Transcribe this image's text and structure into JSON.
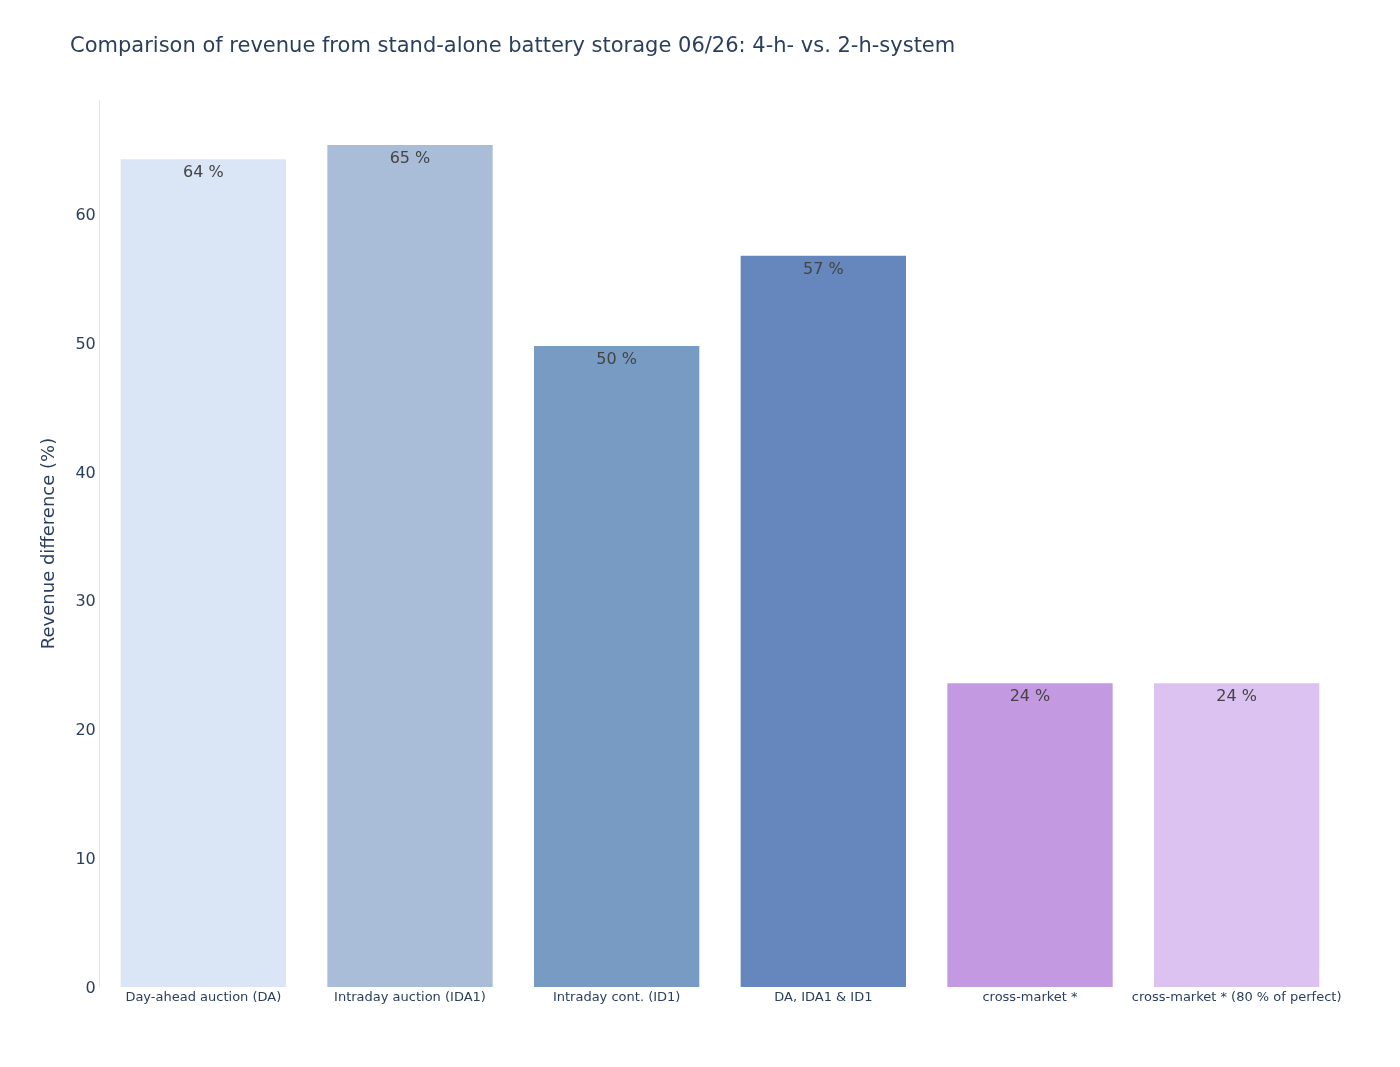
{
  "chart_data": {
    "type": "bar",
    "title": "Comparison of revenue from stand-alone battery storage 06/26: 4-h- vs. 2-h-system",
    "ylabel": "Revenue difference (%)",
    "categories": [
      "Day-ahead auction (DA)",
      "Intraday auction (IDA1)",
      "Intraday cont. (ID1)",
      "DA, IDA1 & ID1",
      "cross-market *",
      "cross-market * (80 % of perfect)"
    ],
    "values": [
      64.3,
      65.4,
      49.8,
      56.8,
      23.6,
      23.6
    ],
    "value_labels": [
      "64 %",
      "65 %",
      "50 %",
      "57 %",
      "24 %",
      "24 %"
    ],
    "colors": [
      "#dae6f6",
      "#aabdd8",
      "#789bc3",
      "#6587bd",
      "#c39ae2",
      "#dcc2f1"
    ],
    "ylim": [
      0,
      68.9
    ],
    "yticks": [
      0,
      10,
      20,
      30,
      40,
      50,
      60
    ],
    "grid": false,
    "legend": false
  }
}
